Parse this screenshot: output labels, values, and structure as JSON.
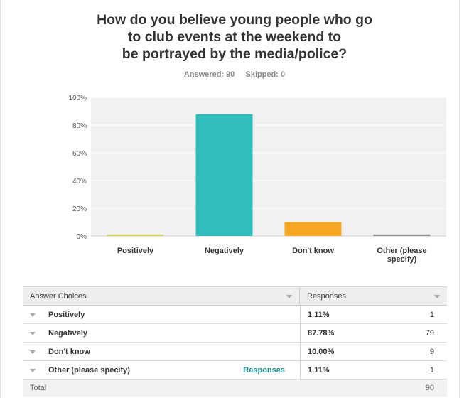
{
  "question": {
    "title_lines": [
      "How do you believe young people who go",
      "to club events at the weekend to",
      "be portrayed by the media/police?"
    ],
    "answered_label": "Answered: 90",
    "skipped_label": "Skipped: 0"
  },
  "chart_data": {
    "type": "bar",
    "categories": [
      "Positively",
      "Negatively",
      "Don't know",
      "Other (please specify)"
    ],
    "category_label_lines": [
      [
        "Positively"
      ],
      [
        "Negatively"
      ],
      [
        "Don't know"
      ],
      [
        "Other (please",
        "specify)"
      ]
    ],
    "values": [
      1.11,
      87.78,
      10.0,
      1.11
    ],
    "colors": [
      "#d4d55a",
      "#32bdbd",
      "#f5a623",
      "#8c8c8c"
    ],
    "ylim": [
      0,
      100
    ],
    "yticks": [
      0,
      20,
      40,
      60,
      80,
      100
    ],
    "ytick_labels": [
      "0%",
      "20%",
      "40%",
      "60%",
      "80%",
      "100%"
    ],
    "grid": true
  },
  "table": {
    "header": {
      "choices": "Answer Choices",
      "responses": "Responses"
    },
    "rows": [
      {
        "label": "Positively",
        "pct": "1.11%",
        "count": "1",
        "link": ""
      },
      {
        "label": "Negatively",
        "pct": "87.78%",
        "count": "79",
        "link": ""
      },
      {
        "label": "Don't know",
        "pct": "10.00%",
        "count": "9",
        "link": ""
      },
      {
        "label": "Other (please specify)",
        "pct": "1.11%",
        "count": "1",
        "link": "Responses"
      }
    ],
    "total": {
      "label": "Total",
      "count": "90"
    }
  }
}
